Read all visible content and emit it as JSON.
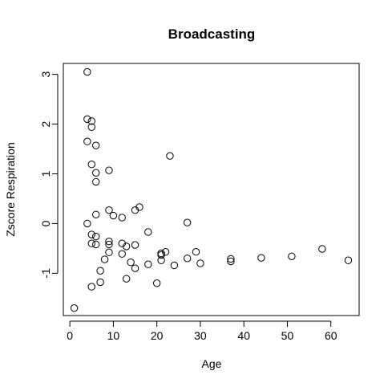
{
  "chart_data": {
    "type": "scatter",
    "title": "Broadcasting",
    "xlabel": "Age",
    "ylabel": "Zscore Respiration",
    "xlim": [
      -1.5,
      66.5
    ],
    "ylim": [
      -1.85,
      3.22
    ],
    "xticks": [
      0,
      10,
      20,
      30,
      40,
      50,
      60
    ],
    "yticks": [
      -1,
      0,
      1,
      2,
      3
    ],
    "grid": false,
    "legend": "none",
    "points": [
      {
        "x": 1,
        "y": -1.7
      },
      {
        "x": 4,
        "y": 3.05
      },
      {
        "x": 4,
        "y": 2.1
      },
      {
        "x": 4,
        "y": 1.65
      },
      {
        "x": 4,
        "y": 0.0
      },
      {
        "x": 5,
        "y": 2.06
      },
      {
        "x": 5,
        "y": 1.94
      },
      {
        "x": 5,
        "y": 1.19
      },
      {
        "x": 5,
        "y": -0.22
      },
      {
        "x": 5,
        "y": -0.4
      },
      {
        "x": 5,
        "y": -1.27
      },
      {
        "x": 6,
        "y": 1.57
      },
      {
        "x": 6,
        "y": 1.02
      },
      {
        "x": 6,
        "y": 0.84
      },
      {
        "x": 6,
        "y": 0.18
      },
      {
        "x": 6,
        "y": -0.26
      },
      {
        "x": 6,
        "y": -0.42
      },
      {
        "x": 7,
        "y": -0.95
      },
      {
        "x": 7,
        "y": -1.18
      },
      {
        "x": 8,
        "y": -0.72
      },
      {
        "x": 9,
        "y": 1.07
      },
      {
        "x": 9,
        "y": 0.27
      },
      {
        "x": 9,
        "y": -0.36
      },
      {
        "x": 9,
        "y": -0.42
      },
      {
        "x": 9,
        "y": -0.58
      },
      {
        "x": 10,
        "y": 0.16
      },
      {
        "x": 12,
        "y": 0.12
      },
      {
        "x": 12,
        "y": -0.4
      },
      {
        "x": 12,
        "y": -0.61
      },
      {
        "x": 13,
        "y": -0.46
      },
      {
        "x": 13,
        "y": -1.11
      },
      {
        "x": 14,
        "y": -0.78
      },
      {
        "x": 15,
        "y": 0.27
      },
      {
        "x": 15,
        "y": -0.43
      },
      {
        "x": 15,
        "y": -0.9
      },
      {
        "x": 16,
        "y": 0.33
      },
      {
        "x": 18,
        "y": -0.17
      },
      {
        "x": 18,
        "y": -0.82
      },
      {
        "x": 20,
        "y": -1.2
      },
      {
        "x": 21,
        "y": -0.6
      },
      {
        "x": 21,
        "y": -0.63
      },
      {
        "x": 21,
        "y": -0.74
      },
      {
        "x": 22,
        "y": -0.57
      },
      {
        "x": 23,
        "y": 1.36
      },
      {
        "x": 24,
        "y": -0.84
      },
      {
        "x": 27,
        "y": 0.02
      },
      {
        "x": 27,
        "y": -0.7
      },
      {
        "x": 29,
        "y": -0.57
      },
      {
        "x": 30,
        "y": -0.8
      },
      {
        "x": 37,
        "y": -0.71
      },
      {
        "x": 37,
        "y": -0.76
      },
      {
        "x": 44,
        "y": -0.69
      },
      {
        "x": 51,
        "y": -0.66
      },
      {
        "x": 58,
        "y": -0.51
      },
      {
        "x": 64,
        "y": -0.74
      }
    ]
  }
}
